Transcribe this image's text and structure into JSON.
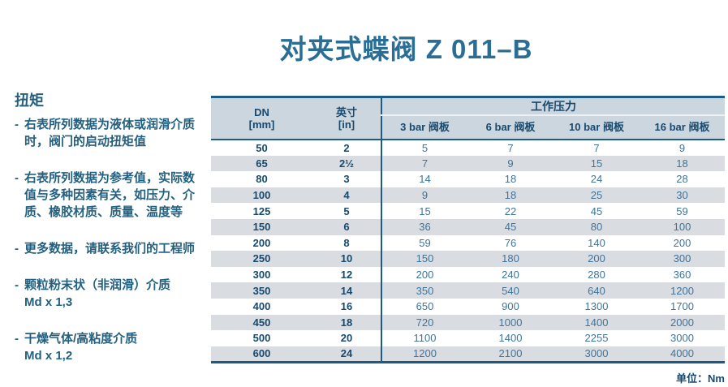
{
  "colors": {
    "border": "#1d5b84",
    "header-bg": "#ccd6de",
    "alt-row": "#d9dce1",
    "title": "#2b6e95",
    "text": "#23607f",
    "dark": "#174a6e",
    "value": "#40749a"
  },
  "page": {
    "title": "对夹式蝶阀 Z 011–B",
    "unit_note": "单位：Nm"
  },
  "sidebar": {
    "heading": "扭矩",
    "items": [
      "右表所列数据为液体或润滑介质\n时，阀门的启动扭矩值",
      "右表所列数据为参考值，实际数\n值与多种因素有关，如压力、介\n质、橡胶材质、质量、温度等",
      "更多数据，请联系我们的工程师",
      "颗粒粉末状（非润滑）介质\nMd x 1,3",
      "干燥气体/高粘度介质\nMd x 1,2"
    ]
  },
  "table": {
    "col1_header": {
      "line1": "DN",
      "line2": "[mm]"
    },
    "col2_header": {
      "line1": "英寸",
      "line2": "[in]"
    },
    "group_header": "工作压力",
    "pressure_headers": [
      "3 bar 阀板",
      "6 bar 阀板",
      "10 bar 阀板",
      "16 bar 阀板"
    ],
    "rows": [
      {
        "dn": "50",
        "inch": "2",
        "values": [
          "5",
          "7",
          "7",
          "9"
        ]
      },
      {
        "dn": "65",
        "inch": "2½",
        "values": [
          "7",
          "9",
          "15",
          "18"
        ]
      },
      {
        "dn": "80",
        "inch": "3",
        "values": [
          "14",
          "18",
          "24",
          "28"
        ]
      },
      {
        "dn": "100",
        "inch": "4",
        "values": [
          "9",
          "18",
          "25",
          "30"
        ]
      },
      {
        "dn": "125",
        "inch": "5",
        "values": [
          "15",
          "22",
          "45",
          "59"
        ]
      },
      {
        "dn": "150",
        "inch": "6",
        "values": [
          "36",
          "45",
          "80",
          "100"
        ]
      },
      {
        "dn": "200",
        "inch": "8",
        "values": [
          "59",
          "76",
          "140",
          "200"
        ]
      },
      {
        "dn": "250",
        "inch": "10",
        "values": [
          "150",
          "180",
          "200",
          "300"
        ]
      },
      {
        "dn": "300",
        "inch": "12",
        "values": [
          "200",
          "240",
          "280",
          "360"
        ]
      },
      {
        "dn": "350",
        "inch": "14",
        "values": [
          "350",
          "540",
          "640",
          "1200"
        ]
      },
      {
        "dn": "400",
        "inch": "16",
        "values": [
          "650",
          "900",
          "1300",
          "1700"
        ]
      },
      {
        "dn": "450",
        "inch": "18",
        "values": [
          "720",
          "1000",
          "1400",
          "2000"
        ]
      },
      {
        "dn": "500",
        "inch": "20",
        "values": [
          "1100",
          "1400",
          "2255",
          "3000"
        ]
      },
      {
        "dn": "600",
        "inch": "24",
        "values": [
          "1200",
          "2100",
          "3000",
          "4000"
        ]
      }
    ]
  }
}
